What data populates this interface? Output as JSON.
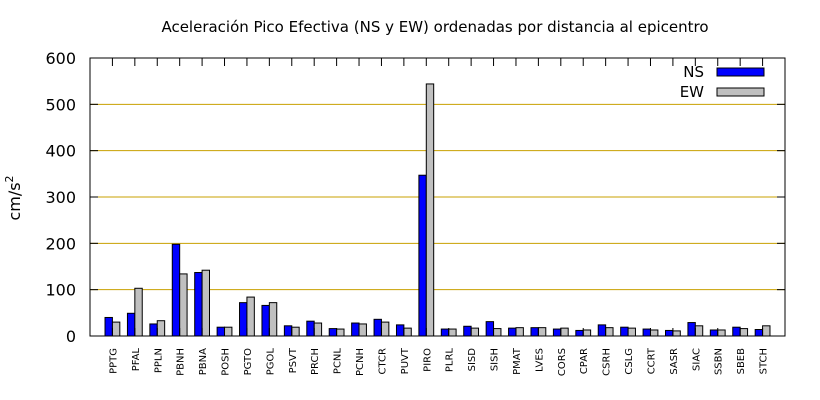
{
  "chart_data": {
    "type": "bar",
    "title": "Aceleración Pico Efectiva (NS y EW) ordenadas por distancia al epicentro",
    "ylabel": "cm/s",
    "ylabel_sup": "2",
    "xlabel": "",
    "ylim": [
      0,
      600
    ],
    "yticks": [
      "0",
      "100",
      "200",
      "300",
      "400",
      "500",
      "600"
    ],
    "grid": "horizontal",
    "legend": "top-right",
    "categories": [
      "PPTG",
      "PFAL",
      "PPLN",
      "PBNH",
      "PBNA",
      "POSH",
      "PGTO",
      "PGOL",
      "PSVT",
      "PRCH",
      "PCNL",
      "PCNH",
      "CTCR",
      "PUVT",
      "PIRO",
      "PLRL",
      "SISD",
      "SISH",
      "PMAT",
      "LVES",
      "CORS",
      "CPAR",
      "CSRH",
      "CSLG",
      "CCRT",
      "SASR",
      "SIAC",
      "SSBN",
      "SBEB",
      "STCH"
    ],
    "series": [
      {
        "name": "NS",
        "color": "#0000ff",
        "values": [
          40,
          49,
          26,
          198,
          137,
          19,
          72,
          66,
          22,
          32,
          16,
          28,
          36,
          24,
          347,
          15,
          21,
          31,
          17,
          18,
          15,
          12,
          24,
          19,
          15,
          12,
          29,
          13,
          19,
          14
        ]
      },
      {
        "name": "EW",
        "color": "#c0c0c0",
        "values": [
          30,
          103,
          33,
          134,
          142,
          19,
          84,
          72,
          19,
          28,
          15,
          26,
          30,
          17,
          544,
          15,
          17,
          16,
          18,
          18,
          17,
          13,
          18,
          17,
          13,
          11,
          22,
          13,
          16,
          22
        ]
      }
    ]
  }
}
